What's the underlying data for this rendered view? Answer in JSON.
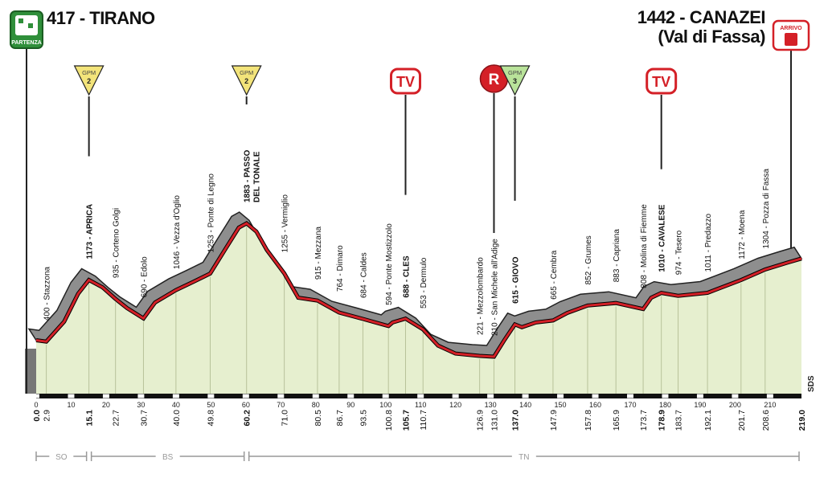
{
  "header": {
    "start": {
      "title": "417 - TIRANO",
      "badge": "PARTENZA"
    },
    "finish": {
      "title": "1442 - CANAZEI",
      "subtitle": "(Val di Fassa)",
      "badge": "ARRIVO"
    }
  },
  "colors": {
    "profile_fill": "#e6efcf",
    "road_line": "#d42027",
    "shadow": "#8e8e8e",
    "gpm_fill": "#f3e47a",
    "gpm3_fill": "#b9e39a",
    "tv_border": "#d42027",
    "r_fill": "#d42027"
  },
  "chart_data": {
    "type": "area",
    "xlabel": "",
    "ylabel": "",
    "xlim": [
      0,
      219
    ],
    "ylim": [
      150,
      2050
    ],
    "axis_ticks": [
      0,
      10,
      20,
      30,
      40,
      50,
      60,
      70,
      80,
      90,
      100,
      110,
      120,
      130,
      140,
      150,
      160,
      170,
      180,
      190,
      200,
      210
    ],
    "profile": [
      {
        "km": 0.0,
        "alt": 417
      },
      {
        "km": 2.9,
        "alt": 400
      },
      {
        "km": 8,
        "alt": 650
      },
      {
        "km": 12,
        "alt": 1000
      },
      {
        "km": 15.1,
        "alt": 1173
      },
      {
        "km": 19,
        "alt": 1080
      },
      {
        "km": 22.7,
        "alt": 935
      },
      {
        "km": 26,
        "alt": 820
      },
      {
        "km": 30.7,
        "alt": 690
      },
      {
        "km": 34,
        "alt": 890
      },
      {
        "km": 40.0,
        "alt": 1046
      },
      {
        "km": 45,
        "alt": 1150
      },
      {
        "km": 49.8,
        "alt": 1253
      },
      {
        "km": 54,
        "alt": 1550
      },
      {
        "km": 58,
        "alt": 1830
      },
      {
        "km": 60.2,
        "alt": 1883
      },
      {
        "km": 63,
        "alt": 1780
      },
      {
        "km": 66,
        "alt": 1550
      },
      {
        "km": 71.0,
        "alt": 1255
      },
      {
        "km": 75,
        "alt": 950
      },
      {
        "km": 80.5,
        "alt": 915
      },
      {
        "km": 86.7,
        "alt": 764
      },
      {
        "km": 93.5,
        "alt": 684
      },
      {
        "km": 100.8,
        "alt": 594
      },
      {
        "km": 102,
        "alt": 640
      },
      {
        "km": 105.7,
        "alt": 688
      },
      {
        "km": 110.7,
        "alt": 553
      },
      {
        "km": 115,
        "alt": 350
      },
      {
        "km": 120,
        "alt": 250
      },
      {
        "km": 126.9,
        "alt": 221
      },
      {
        "km": 131.0,
        "alt": 210
      },
      {
        "km": 134,
        "alt": 420
      },
      {
        "km": 137.0,
        "alt": 615
      },
      {
        "km": 139,
        "alt": 580
      },
      {
        "km": 143,
        "alt": 640
      },
      {
        "km": 147.9,
        "alt": 665
      },
      {
        "km": 152,
        "alt": 760
      },
      {
        "km": 157.8,
        "alt": 852
      },
      {
        "km": 165.9,
        "alt": 883
      },
      {
        "km": 173.7,
        "alt": 808
      },
      {
        "km": 176,
        "alt": 950
      },
      {
        "km": 178.9,
        "alt": 1010
      },
      {
        "km": 183.7,
        "alt": 974
      },
      {
        "km": 192.1,
        "alt": 1011
      },
      {
        "km": 201.7,
        "alt": 1172
      },
      {
        "km": 208.6,
        "alt": 1304
      },
      {
        "km": 215,
        "alt": 1390
      },
      {
        "km": 219.0,
        "alt": 1442
      }
    ],
    "locations": [
      {
        "km": 2.9,
        "label": "400 - Stazzona",
        "bold": false
      },
      {
        "km": 15.1,
        "label": "1173 - APRICA",
        "bold": true
      },
      {
        "km": 22.7,
        "label": "935 - Corteno Golgi",
        "bold": false
      },
      {
        "km": 30.7,
        "label": "690 - Edolo",
        "bold": false
      },
      {
        "km": 40.0,
        "label": "1046 - Vezza d'Oglio",
        "bold": false
      },
      {
        "km": 49.8,
        "label": "1253 - Ponte di Legno",
        "bold": false
      },
      {
        "km": 60.2,
        "label": "1883 - PASSO",
        "label2": "DEL TONALE",
        "bold": true
      },
      {
        "km": 71.0,
        "label": "1255 - Vermiglio",
        "bold": false
      },
      {
        "km": 80.5,
        "label": "915 - Mezzana",
        "bold": false
      },
      {
        "km": 86.7,
        "label": "764 - Dimaro",
        "bold": false
      },
      {
        "km": 93.5,
        "label": "684 - Caldes",
        "bold": false
      },
      {
        "km": 100.8,
        "label": "594 - Ponte Mostizzolo",
        "bold": false
      },
      {
        "km": 105.7,
        "label": "688 - CLES",
        "bold": true
      },
      {
        "km": 110.7,
        "label": "553 - Dermulo",
        "bold": false
      },
      {
        "km": 126.9,
        "label": "221 - Mezzolombardo",
        "bold": false
      },
      {
        "km": 131.0,
        "label": "210 - San Michele all'Adige",
        "bold": false
      },
      {
        "km": 137.0,
        "label": "615 - GIOVO",
        "bold": true
      },
      {
        "km": 147.9,
        "label": "665 - Cembra",
        "bold": false
      },
      {
        "km": 157.8,
        "label": "852 - Grumes",
        "bold": false
      },
      {
        "km": 165.9,
        "label": "883 - Capriana",
        "bold": false
      },
      {
        "km": 173.7,
        "label": "808 - Molina di Fiemme",
        "bold": false
      },
      {
        "km": 178.9,
        "label": "1010 - CAVALESE",
        "bold": true
      },
      {
        "km": 183.7,
        "label": "974 - Tesero",
        "bold": false
      },
      {
        "km": 192.1,
        "label": "1011 - Predazzo",
        "bold": false
      },
      {
        "km": 201.7,
        "label": "1172 - Moena",
        "bold": false
      },
      {
        "km": 208.6,
        "label": "1304 - Pozza di Fassa",
        "bold": false
      }
    ],
    "km_labels": [
      {
        "km": 0.0,
        "text": "0.0",
        "bold": true
      },
      {
        "km": 2.9,
        "text": "2.9",
        "bold": false
      },
      {
        "km": 15.1,
        "text": "15.1",
        "bold": true
      },
      {
        "km": 22.7,
        "text": "22.7",
        "bold": false
      },
      {
        "km": 30.7,
        "text": "30.7",
        "bold": false
      },
      {
        "km": 40.0,
        "text": "40.0",
        "bold": false
      },
      {
        "km": 49.8,
        "text": "49.8",
        "bold": false
      },
      {
        "km": 60.2,
        "text": "60.2",
        "bold": true
      },
      {
        "km": 71.0,
        "text": "71.0",
        "bold": false
      },
      {
        "km": 80.5,
        "text": "80.5",
        "bold": false
      },
      {
        "km": 86.7,
        "text": "86.7",
        "bold": false
      },
      {
        "km": 93.5,
        "text": "93.5",
        "bold": false
      },
      {
        "km": 100.8,
        "text": "100.8",
        "bold": false
      },
      {
        "km": 105.7,
        "text": "105.7",
        "bold": true
      },
      {
        "km": 110.7,
        "text": "110.7",
        "bold": false
      },
      {
        "km": 126.9,
        "text": "126.9",
        "bold": false
      },
      {
        "km": 131.0,
        "text": "131.0",
        "bold": false
      },
      {
        "km": 137.0,
        "text": "137.0",
        "bold": true
      },
      {
        "km": 147.9,
        "text": "147.9",
        "bold": false
      },
      {
        "km": 157.8,
        "text": "157.8",
        "bold": false
      },
      {
        "km": 165.9,
        "text": "165.9",
        "bold": false
      },
      {
        "km": 173.7,
        "text": "173.7",
        "bold": false
      },
      {
        "km": 178.9,
        "text": "178.9",
        "bold": true
      },
      {
        "km": 183.7,
        "text": "183.7",
        "bold": false
      },
      {
        "km": 192.1,
        "text": "192.1",
        "bold": false
      },
      {
        "km": 201.7,
        "text": "201.7",
        "bold": false
      },
      {
        "km": 208.6,
        "text": "208.6",
        "bold": false
      },
      {
        "km": 219.0,
        "text": "219.0",
        "bold": true
      }
    ],
    "markers": [
      {
        "km": 15.1,
        "type": "gpm",
        "line1": "GPM",
        "line2": "2"
      },
      {
        "km": 60.2,
        "type": "gpm",
        "line1": "GPM",
        "line2": "2"
      },
      {
        "km": 105.7,
        "type": "tv",
        "text": "TV"
      },
      {
        "km": 131.0,
        "type": "r",
        "text": "R"
      },
      {
        "km": 137.0,
        "type": "gpm3",
        "line1": "GPM",
        "line2": "3"
      },
      {
        "km": 178.9,
        "type": "tv",
        "text": "TV"
      }
    ],
    "regions": [
      {
        "from": 0,
        "to": 15.1,
        "label": "SO"
      },
      {
        "from": 15.1,
        "to": 60.2,
        "label": "BS"
      },
      {
        "from": 60.2,
        "to": 219,
        "label": "TN"
      }
    ],
    "road_label": "SDS"
  }
}
